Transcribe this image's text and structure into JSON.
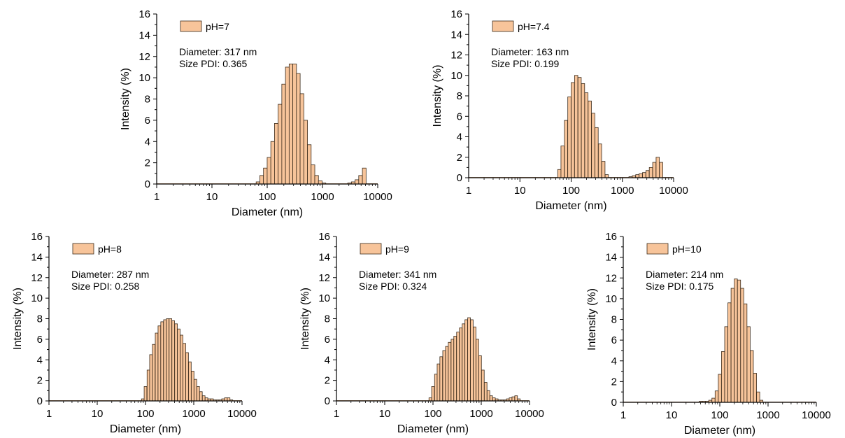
{
  "colors": {
    "bar_fill": "#f7c49a",
    "bar_stroke": "#3a2a1a",
    "axis": "#000000"
  },
  "chart_data": [
    {
      "type": "bar",
      "legend": "pH=7",
      "annotations": [
        "Diameter: 317 nm",
        "Size PDI: 0.365"
      ],
      "xlabel": "Diameter (nm)",
      "ylabel": "Intensity (%)",
      "xscale": "log",
      "xlim": [
        1,
        10000
      ],
      "ylim": [
        0,
        16
      ],
      "xticks": [
        1,
        10,
        100,
        1000,
        10000
      ],
      "xtick_labels": [
        "1",
        "10",
        "100",
        "1000",
        "10000"
      ],
      "yticks": [
        0,
        2,
        4,
        6,
        8,
        10,
        12,
        14,
        16
      ],
      "ytick_labels": [
        "0",
        "2",
        "4",
        "6",
        "8",
        "10",
        "12",
        "14",
        "16"
      ],
      "grid": false,
      "legend_position": "top-left",
      "x": [
        68.1,
        79.4,
        92.5,
        107.8,
        125.5,
        146.2,
        170.3,
        198.4,
        231.1,
        269.3,
        313.6,
        365.3,
        425.5,
        495.7,
        577.4,
        672.6,
        783.5,
        912.6,
        1063,
        1239,
        1443,
        1681,
        1958,
        2281,
        2657,
        3095,
        3605,
        4199,
        4892,
        5699
      ],
      "values": [
        0.2,
        0.8,
        1.5,
        2.5,
        4.0,
        5.7,
        7.5,
        9.4,
        11.0,
        11.3,
        11.3,
        10.4,
        8.5,
        6.0,
        3.7,
        1.8,
        0.8,
        0.3,
        0.1,
        0,
        0,
        0,
        0,
        0,
        0,
        0.1,
        0.2,
        0.4,
        0.8,
        1.5
      ]
    },
    {
      "type": "bar",
      "legend": "pH=7.4",
      "annotations": [
        "Diameter: 163 nm",
        "Size PDI: 0.199"
      ],
      "xlabel": "Diameter (nm)",
      "ylabel": "Intensity (%)",
      "xscale": "log",
      "xlim": [
        1,
        10000
      ],
      "ylim": [
        0,
        16
      ],
      "xticks": [
        1,
        10,
        100,
        1000,
        10000
      ],
      "xtick_labels": [
        "1",
        "10",
        "100",
        "1000",
        "10000"
      ],
      "yticks": [
        0,
        2,
        4,
        6,
        8,
        10,
        12,
        14,
        16
      ],
      "ytick_labels": [
        "0",
        "2",
        "4",
        "6",
        "8",
        "10",
        "12",
        "14",
        "16"
      ],
      "grid": false,
      "legend_position": "top-left",
      "x": [
        58.8,
        68.1,
        79.4,
        92.5,
        107.8,
        125.5,
        146.2,
        170.3,
        198.4,
        231.1,
        269.3,
        313.6,
        365.3,
        425.5,
        495.7,
        1443,
        1681,
        1958,
        2281,
        2657,
        3095,
        3605,
        4199,
        4892,
        5699
      ],
      "values": [
        0.8,
        3.1,
        5.6,
        7.9,
        9.3,
        10.0,
        9.8,
        9.2,
        8.3,
        7.5,
        6.3,
        4.9,
        3.3,
        1.6,
        0.3,
        0.1,
        0.2,
        0.3,
        0.4,
        0.5,
        0.7,
        1.0,
        1.5,
        2.0,
        1.5
      ]
    },
    {
      "type": "bar",
      "legend": "pH=8",
      "annotations": [
        "Diameter: 287 nm",
        "Size PDI: 0.258"
      ],
      "xlabel": "Diameter (nm)",
      "ylabel": "Intensity (%)",
      "xscale": "log",
      "xlim": [
        1,
        10000
      ],
      "ylim": [
        0,
        16
      ],
      "xticks": [
        1,
        10,
        100,
        1000,
        10000
      ],
      "xtick_labels": [
        "1",
        "10",
        "100",
        "1000",
        "10000"
      ],
      "yticks": [
        0,
        2,
        4,
        6,
        8,
        10,
        12,
        14,
        16
      ],
      "ytick_labels": [
        "0",
        "2",
        "4",
        "6",
        "8",
        "10",
        "12",
        "14",
        "16"
      ],
      "grid": false,
      "legend_position": "top-left",
      "x": [
        88,
        100,
        115,
        130,
        148,
        170,
        194,
        221,
        253,
        288,
        329,
        376,
        429,
        489,
        558,
        637,
        727,
        830,
        947,
        1080,
        1233,
        1407,
        1606,
        1833,
        2092,
        2387,
        2724,
        3109,
        3548,
        4049,
        4621,
        5274,
        6019
      ],
      "values": [
        0.2,
        1.4,
        3.0,
        4.5,
        5.5,
        6.6,
        7.3,
        7.7,
        7.9,
        8.0,
        8.0,
        7.8,
        7.5,
        7.0,
        6.4,
        5.6,
        4.7,
        3.8,
        2.9,
        2.1,
        1.4,
        0.9,
        0.5,
        0.3,
        0.2,
        0.2,
        0.1,
        0.1,
        0.1,
        0.2,
        0.3,
        0.3,
        0.1
      ]
    },
    {
      "type": "bar",
      "legend": "pH=9",
      "annotations": [
        "Diameter: 341 nm",
        "Size PDI: 0.324"
      ],
      "xlabel": "Diameter (nm)",
      "ylabel": "Intensity (%)",
      "xscale": "log",
      "xlim": [
        1,
        10000
      ],
      "ylim": [
        0,
        16
      ],
      "xticks": [
        1,
        10,
        100,
        1000,
        10000
      ],
      "xtick_labels": [
        "1",
        "10",
        "100",
        "1000",
        "10000"
      ],
      "yticks": [
        0,
        2,
        4,
        6,
        8,
        10,
        12,
        14,
        16
      ],
      "ytick_labels": [
        "0",
        "2",
        "4",
        "6",
        "8",
        "10",
        "12",
        "14",
        "16"
      ],
      "grid": false,
      "legend_position": "top-left",
      "x": [
        88,
        100,
        115,
        130,
        148,
        170,
        194,
        221,
        253,
        288,
        329,
        376,
        429,
        489,
        558,
        637,
        727,
        830,
        947,
        1080,
        1233,
        1407,
        1606,
        1833,
        2092,
        2387,
        2724,
        3109,
        3548,
        4049,
        4621,
        5274,
        6019
      ],
      "values": [
        0.3,
        1.4,
        2.6,
        3.6,
        4.3,
        4.9,
        5.3,
        5.7,
        6.0,
        6.3,
        6.7,
        7.1,
        7.5,
        7.9,
        8.1,
        7.9,
        7.2,
        6.0,
        4.4,
        3.0,
        1.8,
        1.0,
        0.5,
        0.3,
        0.2,
        0.1,
        0.1,
        0.1,
        0.2,
        0.3,
        0.4,
        0.5,
        0.2
      ]
    },
    {
      "type": "bar",
      "legend": "pH=10",
      "annotations": [
        "Diameter: 214 nm",
        "Size PDI: 0.175"
      ],
      "xlabel": "Diameter (nm)",
      "ylabel": "Intensity (%)",
      "xscale": "log",
      "xlim": [
        1,
        10000
      ],
      "ylim": [
        0,
        16
      ],
      "xticks": [
        1,
        10,
        100,
        1000,
        10000
      ],
      "xtick_labels": [
        "1",
        "10",
        "100",
        "1000",
        "10000"
      ],
      "yticks": [
        0,
        2,
        4,
        6,
        8,
        10,
        12,
        14,
        16
      ],
      "ytick_labels": [
        "0",
        "2",
        "4",
        "6",
        "8",
        "10",
        "12",
        "14",
        "16"
      ],
      "grid": false,
      "legend_position": "top-left",
      "x": [
        40.4,
        46.9,
        54.6,
        63.6,
        74,
        86.2,
        100.4,
        116.9,
        136.1,
        158.5,
        184.5,
        214.9,
        250.2,
        291.3,
        339.2,
        395,
        460,
        535.6,
        623.7,
        726.3
      ],
      "values": [
        0.1,
        0.1,
        0.1,
        0.2,
        0.4,
        1.1,
        2.7,
        4.9,
        7.3,
        9.6,
        11.0,
        11.9,
        11.8,
        11.0,
        9.5,
        7.3,
        5.0,
        2.8,
        1.0,
        0.2
      ]
    }
  ]
}
